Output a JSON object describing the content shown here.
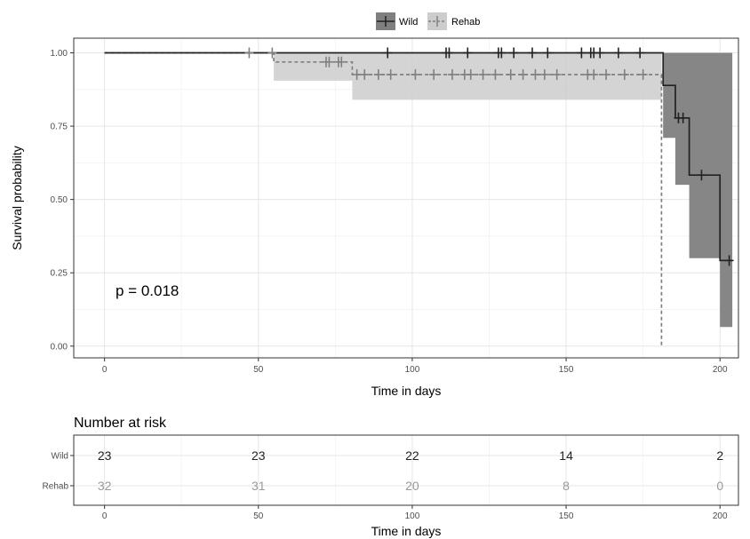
{
  "chart_data": [
    {
      "type": "line",
      "step": true,
      "xlabel": "Time in days",
      "ylabel": "Survival probability",
      "xlim": [
        -10,
        206
      ],
      "ylim": [
        -0.04,
        1.05
      ],
      "xticks": [
        0,
        50,
        100,
        150,
        200
      ],
      "yticks": [
        0,
        0.25,
        0.5,
        0.75,
        1
      ],
      "xtick_labels": [
        "0",
        "50",
        "100",
        "150",
        "200"
      ],
      "ytick_labels": [
        "0.00",
        "0.25",
        "0.50",
        "0.75",
        "1.00"
      ],
      "grid": true,
      "legend_position": "top",
      "annotation": "p = 0.018",
      "series": [
        {
          "name": "Wild",
          "color": "#222222",
          "band_color": "#7f7f7f",
          "line_style": "solid",
          "steps": [
            [
              0,
              1.0
            ],
            [
              181.5,
              0.889
            ],
            [
              185.5,
              0.778
            ],
            [
              190,
              0.583
            ],
            [
              200,
              0.292
            ],
            [
              204,
              0.292
            ]
          ],
          "band": [
            [
              0,
              1.0,
              1.0
            ],
            [
              181.5,
              0.71,
              1.0
            ],
            [
              185.5,
              0.55,
              1.0
            ],
            [
              190,
              0.3,
              1.0
            ],
            [
              200,
              0.065,
              1.0
            ],
            [
              204,
              0.065,
              1.0
            ]
          ],
          "censored": [
            [
              92,
              1.0
            ],
            [
              111,
              1.0
            ],
            [
              112,
              1.0
            ],
            [
              118,
              1.0
            ],
            [
              128,
              1.0
            ],
            [
              129,
              1.0
            ],
            [
              133,
              1.0
            ],
            [
              139,
              1.0
            ],
            [
              144,
              1.0
            ],
            [
              155,
              1.0
            ],
            [
              158,
              1.0
            ],
            [
              159,
              1.0
            ],
            [
              161,
              1.0
            ],
            [
              167,
              1.0
            ],
            [
              174,
              1.0
            ],
            [
              186.5,
              0.778
            ],
            [
              188,
              0.778
            ],
            [
              194,
              0.583
            ],
            [
              203,
              0.292
            ]
          ]
        },
        {
          "name": "Rehab",
          "color": "#808080",
          "band_color": "#cccccc",
          "line_style": "dashed",
          "steps": [
            [
              0,
              1.0
            ],
            [
              55,
              0.969
            ],
            [
              80.5,
              0.926
            ],
            [
              181,
              0.0
            ]
          ],
          "band": [
            [
              0,
              1.0,
              1.0
            ],
            [
              55,
              0.905,
              1.0
            ],
            [
              80.5,
              0.84,
              1.0
            ],
            [
              181,
              0.84,
              1.0
            ]
          ],
          "censored": [
            [
              47,
              1.0
            ],
            [
              54.5,
              1.0
            ],
            [
              72,
              0.969
            ],
            [
              73,
              0.969
            ],
            [
              76,
              0.969
            ],
            [
              77,
              0.969
            ],
            [
              82,
              0.926
            ],
            [
              84.5,
              0.926
            ],
            [
              89,
              0.926
            ],
            [
              93,
              0.926
            ],
            [
              101,
              0.926
            ],
            [
              107,
              0.926
            ],
            [
              113,
              0.926
            ],
            [
              117,
              0.926
            ],
            [
              119,
              0.926
            ],
            [
              123,
              0.926
            ],
            [
              127,
              0.926
            ],
            [
              132,
              0.926
            ],
            [
              136,
              0.926
            ],
            [
              140,
              0.926
            ],
            [
              143,
              0.926
            ],
            [
              147,
              0.926
            ],
            [
              157,
              0.926
            ],
            [
              159,
              0.926
            ],
            [
              163,
              0.926
            ],
            [
              169,
              0.926
            ],
            [
              175,
              0.926
            ]
          ]
        }
      ]
    },
    {
      "type": "table",
      "title": "Number at risk",
      "xlabel": "Time in days",
      "xlim": [
        -10,
        206
      ],
      "xticks": [
        0,
        50,
        100,
        150,
        200
      ],
      "xtick_labels": [
        "0",
        "50",
        "100",
        "150",
        "200"
      ],
      "rows": [
        {
          "name": "Wild",
          "color": "#222222",
          "values": [
            23,
            23,
            22,
            14,
            2
          ]
        },
        {
          "name": "Rehab",
          "color": "#999999",
          "values": [
            32,
            31,
            20,
            8,
            0
          ]
        }
      ]
    }
  ]
}
